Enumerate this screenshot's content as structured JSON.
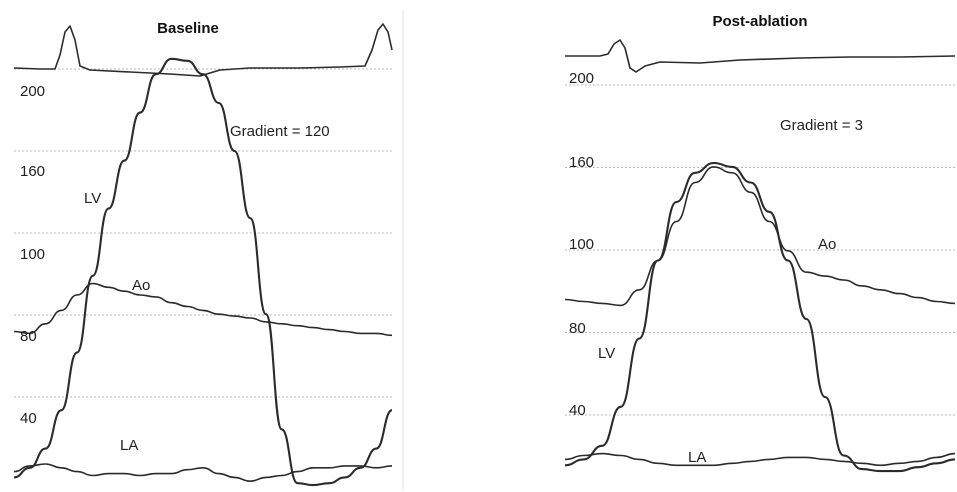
{
  "chart_data": [
    {
      "type": "line",
      "title": "Baseline",
      "annotation": "Gradient = 120",
      "y_ticks": [
        "200",
        "160",
        "100",
        "80",
        "40"
      ],
      "series": [
        {
          "name": "LV",
          "values": [
            5,
            10,
            20,
            40,
            70,
            110,
            145,
            170,
            195,
            215,
            223,
            222,
            215,
            200,
            175,
            140,
            90,
            30,
            2,
            1,
            2,
            5,
            10,
            20,
            40
          ]
        },
        {
          "name": "Ao",
          "values": [
            81,
            80,
            85,
            92,
            100,
            106,
            104,
            102,
            100,
            99,
            96,
            94,
            92,
            90,
            89,
            88,
            86,
            85,
            84,
            83,
            82,
            81,
            80,
            80,
            79
          ]
        },
        {
          "name": "LA",
          "values": [
            8,
            11,
            12,
            10,
            8,
            6,
            7,
            7,
            6,
            7,
            7,
            9,
            10,
            7,
            5,
            3,
            5,
            6,
            8,
            10,
            10,
            11,
            11,
            10,
            11
          ]
        }
      ]
    },
    {
      "type": "line",
      "title": "Post-ablation",
      "annotation": "Gradient = 3",
      "y_ticks": [
        "200",
        "160",
        "100",
        "80",
        "40"
      ],
      "series": [
        {
          "name": "LV",
          "values": [
            5,
            8,
            15,
            35,
            70,
            110,
            140,
            155,
            160,
            158,
            150,
            135,
            110,
            80,
            40,
            10,
            3,
            2,
            2,
            4,
            6,
            8
          ]
        },
        {
          "name": "Ao",
          "values": [
            90,
            89,
            88,
            87,
            95,
            110,
            130,
            150,
            158,
            155,
            145,
            130,
            115,
            104,
            102,
            100,
            97,
            95,
            93,
            91,
            89,
            88
          ]
        },
        {
          "name": "LA",
          "values": [
            8,
            10,
            11,
            10,
            8,
            6,
            5,
            5,
            5,
            6,
            7,
            8,
            9,
            9,
            8,
            7,
            6,
            5,
            6,
            7,
            9,
            11
          ]
        }
      ]
    }
  ]
}
